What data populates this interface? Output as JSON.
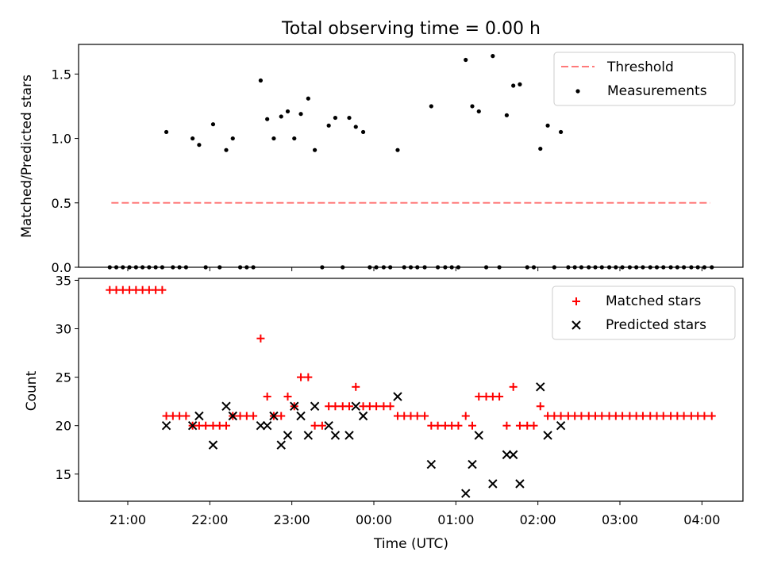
{
  "figure": {
    "title": "Total observing time = 0.00 h",
    "xlabel": "Time (UTC)"
  },
  "chart_data": [
    {
      "type": "scatter",
      "title": "Total observing time = 0.00 h",
      "ylabel": "Matched/Predicted stars",
      "xlabel": "Time (UTC)",
      "x_unit": "hours UTC (values past midnight continue as 24+)",
      "xlim": [
        20.4,
        28.5
      ],
      "ylim": [
        0,
        1.73
      ],
      "yticks": [
        "0.0",
        "0.5",
        "1.0",
        "1.5"
      ],
      "legend_position": "top-right",
      "series": [
        {
          "name": "Threshold",
          "kind": "dashed-line",
          "color": "#ff7a7a",
          "x": [
            20.8,
            28.1
          ],
          "y": [
            0.5,
            0.5
          ]
        },
        {
          "name": "Measurements",
          "kind": "dots",
          "color": "#000000",
          "points": [
            [
              20.78,
              0
            ],
            [
              20.86,
              0
            ],
            [
              20.94,
              0
            ],
            [
              21.02,
              0
            ],
            [
              21.1,
              0
            ],
            [
              21.18,
              0
            ],
            [
              21.26,
              0
            ],
            [
              21.34,
              0
            ],
            [
              21.42,
              0
            ],
            [
              21.47,
              1.05
            ],
            [
              21.55,
              0
            ],
            [
              21.63,
              0
            ],
            [
              21.71,
              0
            ],
            [
              21.79,
              1.0
            ],
            [
              21.87,
              0.95
            ],
            [
              21.95,
              0
            ],
            [
              22.04,
              1.11
            ],
            [
              22.12,
              0
            ],
            [
              22.2,
              0.91
            ],
            [
              22.28,
              1.0
            ],
            [
              22.37,
              0
            ],
            [
              22.45,
              0
            ],
            [
              22.53,
              0
            ],
            [
              22.62,
              1.45
            ],
            [
              22.7,
              1.15
            ],
            [
              22.78,
              1.0
            ],
            [
              22.87,
              1.17
            ],
            [
              22.95,
              1.21
            ],
            [
              23.03,
              1.0
            ],
            [
              23.11,
              1.19
            ],
            [
              23.2,
              1.31
            ],
            [
              23.28,
              0.91
            ],
            [
              23.37,
              0
            ],
            [
              23.45,
              1.1
            ],
            [
              23.53,
              1.16
            ],
            [
              23.62,
              0
            ],
            [
              23.7,
              1.16
            ],
            [
              23.78,
              1.09
            ],
            [
              23.87,
              1.05
            ],
            [
              23.95,
              0
            ],
            [
              24.03,
              0
            ],
            [
              24.12,
              0
            ],
            [
              24.2,
              0
            ],
            [
              24.29,
              0.91
            ],
            [
              24.37,
              0
            ],
            [
              24.45,
              0
            ],
            [
              24.53,
              0
            ],
            [
              24.62,
              0
            ],
            [
              24.7,
              1.25
            ],
            [
              24.78,
              0
            ],
            [
              24.87,
              0
            ],
            [
              24.95,
              0
            ],
            [
              25.03,
              0
            ],
            [
              25.12,
              1.61
            ],
            [
              25.2,
              1.25
            ],
            [
              25.28,
              1.21
            ],
            [
              25.37,
              0
            ],
            [
              25.45,
              1.64
            ],
            [
              25.53,
              0
            ],
            [
              25.62,
              1.18
            ],
            [
              25.7,
              1.41
            ],
            [
              25.78,
              1.42
            ],
            [
              25.87,
              0
            ],
            [
              25.95,
              0
            ],
            [
              26.03,
              0.92
            ],
            [
              26.12,
              1.1
            ],
            [
              26.2,
              0
            ],
            [
              26.28,
              1.05
            ],
            [
              26.37,
              0
            ],
            [
              26.45,
              0
            ],
            [
              26.53,
              0
            ],
            [
              26.62,
              0
            ],
            [
              26.7,
              0
            ],
            [
              26.78,
              0
            ],
            [
              26.87,
              0
            ],
            [
              26.95,
              0
            ],
            [
              27.03,
              0
            ],
            [
              27.12,
              0
            ],
            [
              27.2,
              0
            ],
            [
              27.28,
              0
            ],
            [
              27.37,
              0
            ],
            [
              27.45,
              0
            ],
            [
              27.53,
              0
            ],
            [
              27.62,
              0
            ],
            [
              27.7,
              0
            ],
            [
              27.78,
              0
            ],
            [
              27.87,
              0
            ],
            [
              27.95,
              0
            ],
            [
              28.03,
              0
            ],
            [
              28.12,
              0
            ]
          ]
        }
      ]
    },
    {
      "type": "scatter",
      "ylabel": "Count",
      "xlabel": "Time (UTC)",
      "x_unit": "hours UTC (values past midnight continue as 24+)",
      "xlim": [
        20.4,
        28.5
      ],
      "ylim": [
        12.2,
        35.2
      ],
      "yticks": [
        "15",
        "20",
        "25",
        "30",
        "35"
      ],
      "xticks": [
        {
          "value": 21,
          "label": "21:00"
        },
        {
          "value": 22,
          "label": "22:00"
        },
        {
          "value": 23,
          "label": "23:00"
        },
        {
          "value": 24,
          "label": "00:00"
        },
        {
          "value": 25,
          "label": "01:00"
        },
        {
          "value": 26,
          "label": "02:00"
        },
        {
          "value": 27,
          "label": "03:00"
        },
        {
          "value": 28,
          "label": "04:00"
        }
      ],
      "legend_position": "top-right",
      "series": [
        {
          "name": "Matched stars",
          "marker": "plus",
          "color": "#ff0000",
          "points": [
            [
              20.78,
              34
            ],
            [
              20.86,
              34
            ],
            [
              20.94,
              34
            ],
            [
              21.02,
              34
            ],
            [
              21.1,
              34
            ],
            [
              21.18,
              34
            ],
            [
              21.26,
              34
            ],
            [
              21.34,
              34
            ],
            [
              21.42,
              34
            ],
            [
              21.47,
              21
            ],
            [
              21.55,
              21
            ],
            [
              21.63,
              21
            ],
            [
              21.71,
              21
            ],
            [
              21.79,
              20
            ],
            [
              21.87,
              20
            ],
            [
              21.95,
              20
            ],
            [
              22.04,
              20
            ],
            [
              22.12,
              20
            ],
            [
              22.2,
              20
            ],
            [
              22.28,
              21
            ],
            [
              22.37,
              21
            ],
            [
              22.45,
              21
            ],
            [
              22.53,
              21
            ],
            [
              22.62,
              29
            ],
            [
              22.7,
              23
            ],
            [
              22.78,
              21
            ],
            [
              22.87,
              21
            ],
            [
              22.95,
              23
            ],
            [
              23.03,
              22
            ],
            [
              23.11,
              25
            ],
            [
              23.2,
              25
            ],
            [
              23.28,
              20
            ],
            [
              23.37,
              20
            ],
            [
              23.45,
              22
            ],
            [
              23.53,
              22
            ],
            [
              23.62,
              22
            ],
            [
              23.7,
              22
            ],
            [
              23.78,
              24
            ],
            [
              23.87,
              22
            ],
            [
              23.95,
              22
            ],
            [
              24.03,
              22
            ],
            [
              24.12,
              22
            ],
            [
              24.2,
              22
            ],
            [
              24.29,
              21
            ],
            [
              24.37,
              21
            ],
            [
              24.45,
              21
            ],
            [
              24.53,
              21
            ],
            [
              24.62,
              21
            ],
            [
              24.7,
              20
            ],
            [
              24.78,
              20
            ],
            [
              24.87,
              20
            ],
            [
              24.95,
              20
            ],
            [
              25.03,
              20
            ],
            [
              25.12,
              21
            ],
            [
              25.2,
              20
            ],
            [
              25.28,
              23
            ],
            [
              25.37,
              23
            ],
            [
              25.45,
              23
            ],
            [
              25.53,
              23
            ],
            [
              25.62,
              20
            ],
            [
              25.7,
              24
            ],
            [
              25.78,
              20
            ],
            [
              25.87,
              20
            ],
            [
              25.95,
              20
            ],
            [
              26.03,
              22
            ],
            [
              26.12,
              21
            ],
            [
              26.2,
              21
            ],
            [
              26.28,
              21
            ],
            [
              26.37,
              21
            ],
            [
              26.45,
              21
            ],
            [
              26.53,
              21
            ],
            [
              26.62,
              21
            ],
            [
              26.7,
              21
            ],
            [
              26.78,
              21
            ],
            [
              26.87,
              21
            ],
            [
              26.95,
              21
            ],
            [
              27.03,
              21
            ],
            [
              27.12,
              21
            ],
            [
              27.2,
              21
            ],
            [
              27.28,
              21
            ],
            [
              27.37,
              21
            ],
            [
              27.45,
              21
            ],
            [
              27.53,
              21
            ],
            [
              27.62,
              21
            ],
            [
              27.7,
              21
            ],
            [
              27.78,
              21
            ],
            [
              27.87,
              21
            ],
            [
              27.95,
              21
            ],
            [
              28.03,
              21
            ],
            [
              28.12,
              21
            ]
          ]
        },
        {
          "name": "Predicted stars",
          "marker": "x",
          "color": "#000000",
          "points": [
            [
              21.47,
              20
            ],
            [
              21.79,
              20
            ],
            [
              21.87,
              21
            ],
            [
              22.04,
              18
            ],
            [
              22.2,
              22
            ],
            [
              22.28,
              21
            ],
            [
              22.62,
              20
            ],
            [
              22.7,
              20
            ],
            [
              22.78,
              21
            ],
            [
              22.87,
              18
            ],
            [
              22.95,
              19
            ],
            [
              23.03,
              22
            ],
            [
              23.11,
              21
            ],
            [
              23.2,
              19
            ],
            [
              23.28,
              22
            ],
            [
              23.45,
              20
            ],
            [
              23.53,
              19
            ],
            [
              23.7,
              19
            ],
            [
              23.78,
              22
            ],
            [
              23.87,
              21
            ],
            [
              24.29,
              23
            ],
            [
              24.7,
              16
            ],
            [
              25.12,
              13
            ],
            [
              25.2,
              16
            ],
            [
              25.28,
              19
            ],
            [
              25.45,
              14
            ],
            [
              25.62,
              17
            ],
            [
              25.7,
              17
            ],
            [
              25.78,
              14
            ],
            [
              26.03,
              24
            ],
            [
              26.12,
              19
            ],
            [
              26.28,
              20
            ]
          ]
        }
      ]
    }
  ]
}
